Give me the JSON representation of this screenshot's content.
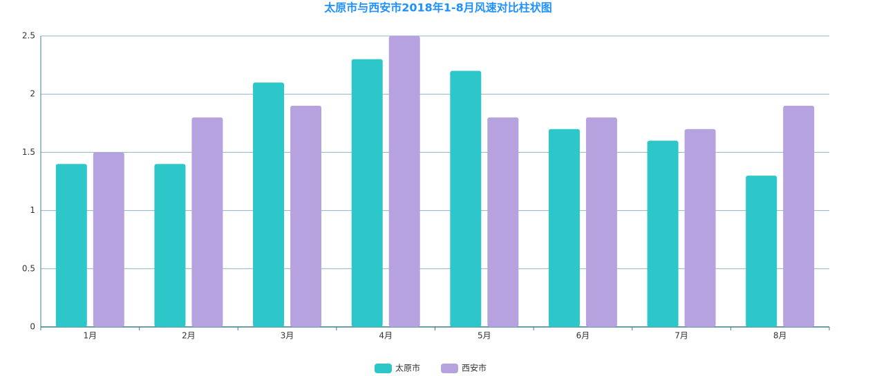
{
  "chart_data": {
    "type": "bar",
    "title": "太原市与西安市2018年1-8月风速对比柱状图",
    "categories": [
      "1月",
      "2月",
      "3月",
      "4月",
      "5月",
      "6月",
      "7月",
      "8月"
    ],
    "series": [
      {
        "name": "太原市",
        "color": "#2ec7c9",
        "values": [
          1.4,
          1.4,
          2.1,
          2.3,
          2.2,
          1.7,
          1.6,
          1.3
        ]
      },
      {
        "name": "西安市",
        "color": "#b6a2de",
        "values": [
          1.5,
          1.8,
          1.9,
          2.5,
          1.8,
          1.8,
          1.7,
          1.9
        ]
      }
    ],
    "ylim": [
      0,
      2.5
    ],
    "yticks": [
      0,
      0.5,
      1,
      1.5,
      2,
      2.5
    ],
    "grid": true,
    "legend": "bottom"
  }
}
